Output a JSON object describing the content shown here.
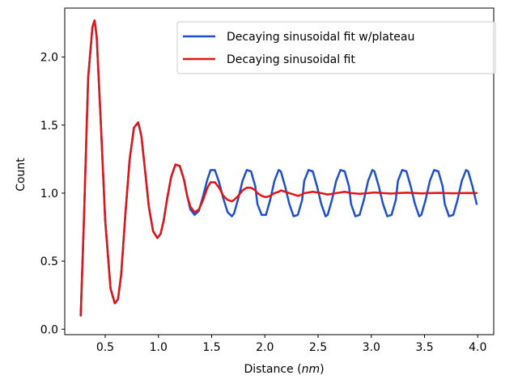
{
  "chart_data": {
    "type": "line",
    "title": "",
    "xlabel": "Distance (",
    "xlabel_unit": "nm",
    "xlabel_close": ")",
    "ylabel": "Count",
    "xlim": [
      0.12,
      4.15
    ],
    "ylim": [
      -0.04,
      2.36
    ],
    "xticks": [
      0.5,
      1.0,
      1.5,
      2.0,
      2.5,
      3.0,
      3.5,
      4.0
    ],
    "xtick_labels": [
      "0.5",
      "1.0",
      "1.5",
      "2.0",
      "2.5",
      "3.0",
      "3.5",
      "4.0"
    ],
    "yticks": [
      0.0,
      0.5,
      1.0,
      1.5,
      2.0
    ],
    "ytick_labels": [
      "0.0",
      "0.5",
      "1.0",
      "1.5",
      "2.0"
    ],
    "grid": false,
    "legend_position": "top-right",
    "series": [
      {
        "name": "Decaying sinusoidal fit w/plateau",
        "color": "#1f4fcc",
        "x": [
          0.27,
          0.3,
          0.34,
          0.38,
          0.4,
          0.42,
          0.46,
          0.5,
          0.55,
          0.59,
          0.62,
          0.65,
          0.69,
          0.73,
          0.77,
          0.81,
          0.84,
          0.87,
          0.91,
          0.95,
          0.99,
          1.02,
          1.05,
          1.08,
          1.12,
          1.16,
          1.2,
          1.24,
          1.27,
          1.3,
          1.34,
          1.38,
          1.42,
          1.46,
          1.49,
          1.53,
          1.57,
          1.61,
          1.65,
          1.69,
          1.71,
          1.75,
          1.79,
          1.83,
          1.87,
          1.91,
          1.93,
          1.97,
          2.01,
          2.05,
          2.09,
          2.13,
          2.15,
          2.19,
          2.23,
          2.27,
          2.31,
          2.35,
          2.37,
          2.41,
          2.45,
          2.49,
          2.53,
          2.57,
          2.59,
          2.63,
          2.67,
          2.71,
          2.75,
          2.79,
          2.81,
          2.85,
          2.89,
          2.93,
          2.97,
          3.01,
          3.03,
          3.07,
          3.11,
          3.15,
          3.19,
          3.23,
          3.25,
          3.29,
          3.33,
          3.37,
          3.41,
          3.45,
          3.47,
          3.51,
          3.55,
          3.59,
          3.63,
          3.67,
          3.69,
          3.73,
          3.77,
          3.81,
          3.85,
          3.89,
          3.91,
          3.95,
          3.99
        ],
        "y": [
          0.1,
          0.8,
          1.85,
          2.22,
          2.27,
          2.15,
          1.5,
          0.8,
          0.3,
          0.19,
          0.22,
          0.4,
          0.85,
          1.25,
          1.48,
          1.52,
          1.42,
          1.2,
          0.9,
          0.72,
          0.67,
          0.7,
          0.8,
          0.95,
          1.12,
          1.21,
          1.2,
          1.1,
          0.98,
          0.88,
          0.84,
          0.87,
          0.98,
          1.1,
          1.17,
          1.17,
          1.08,
          0.96,
          0.86,
          0.83,
          0.85,
          0.96,
          1.09,
          1.17,
          1.16,
          1.05,
          0.92,
          0.84,
          0.84,
          0.95,
          1.09,
          1.17,
          1.16,
          1.05,
          0.92,
          0.83,
          0.84,
          0.95,
          1.09,
          1.17,
          1.16,
          1.05,
          0.92,
          0.83,
          0.84,
          0.95,
          1.09,
          1.17,
          1.16,
          1.05,
          0.92,
          0.83,
          0.84,
          0.95,
          1.09,
          1.17,
          1.16,
          1.05,
          0.92,
          0.83,
          0.84,
          0.95,
          1.09,
          1.17,
          1.16,
          1.05,
          0.92,
          0.83,
          0.84,
          0.95,
          1.09,
          1.17,
          1.16,
          1.05,
          0.92,
          0.83,
          0.84,
          0.95,
          1.09,
          1.17,
          1.16,
          1.05,
          0.92
        ]
      },
      {
        "name": "Decaying sinusoidal fit",
        "color": "#e31414",
        "x": [
          0.27,
          0.3,
          0.34,
          0.38,
          0.4,
          0.42,
          0.46,
          0.5,
          0.55,
          0.59,
          0.62,
          0.65,
          0.69,
          0.73,
          0.77,
          0.81,
          0.84,
          0.87,
          0.91,
          0.95,
          0.99,
          1.02,
          1.05,
          1.08,
          1.12,
          1.16,
          1.2,
          1.24,
          1.27,
          1.3,
          1.34,
          1.38,
          1.42,
          1.46,
          1.49,
          1.53,
          1.57,
          1.61,
          1.65,
          1.69,
          1.71,
          1.75,
          1.79,
          1.83,
          1.87,
          1.91,
          1.93,
          1.97,
          2.01,
          2.05,
          2.09,
          2.13,
          2.15,
          2.19,
          2.23,
          2.27,
          2.31,
          2.35,
          2.37,
          2.45,
          2.53,
          2.59,
          2.67,
          2.75,
          2.81,
          2.89,
          2.97,
          3.03,
          3.11,
          3.19,
          3.25,
          3.33,
          3.41,
          3.47,
          3.55,
          3.63,
          3.69,
          3.77,
          3.85,
          3.91,
          3.99
        ],
        "y": [
          0.1,
          0.8,
          1.85,
          2.22,
          2.27,
          2.15,
          1.5,
          0.8,
          0.3,
          0.19,
          0.22,
          0.4,
          0.85,
          1.25,
          1.48,
          1.52,
          1.42,
          1.2,
          0.9,
          0.72,
          0.67,
          0.7,
          0.8,
          0.95,
          1.12,
          1.21,
          1.2,
          1.1,
          0.98,
          0.9,
          0.86,
          0.88,
          0.95,
          1.04,
          1.08,
          1.08,
          1.04,
          0.98,
          0.95,
          0.94,
          0.95,
          0.98,
          1.02,
          1.04,
          1.04,
          1.02,
          1.0,
          0.98,
          0.97,
          0.98,
          1.0,
          1.01,
          1.02,
          1.01,
          1.0,
          0.99,
          0.98,
          0.99,
          1.0,
          1.01,
          1.0,
          0.99,
          1.0,
          1.01,
          1.0,
          0.995,
          1.0,
          1.005,
          1.0,
          0.997,
          1.0,
          1.003,
          1.0,
          0.998,
          1.0,
          1.002,
          1.0,
          0.999,
          1.0,
          1.001,
          1.0
        ]
      }
    ]
  }
}
